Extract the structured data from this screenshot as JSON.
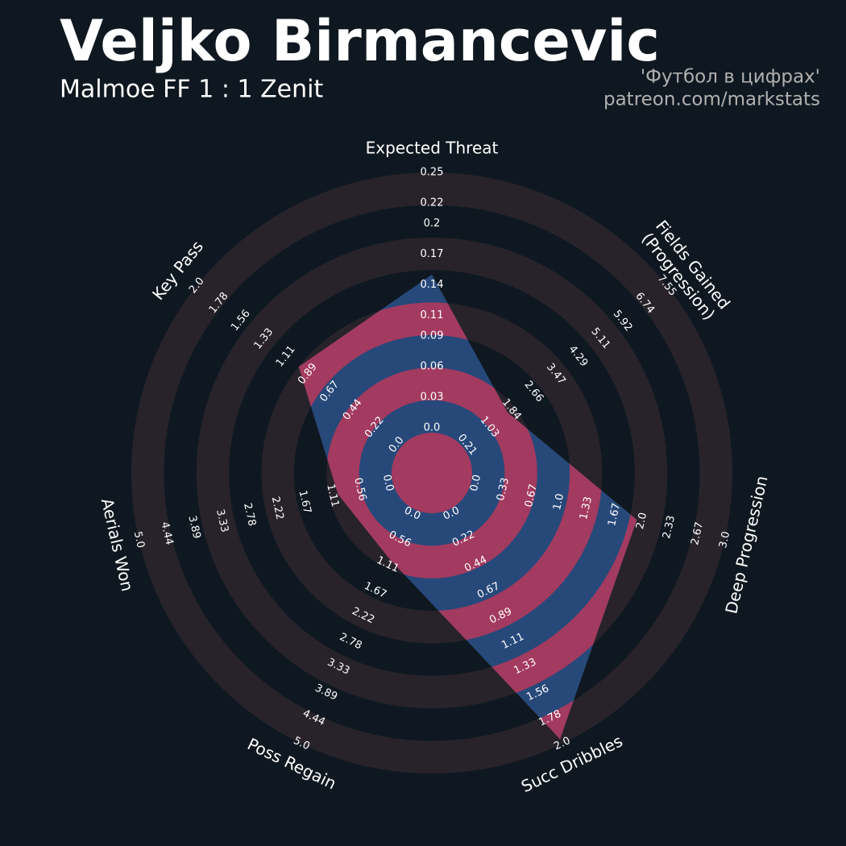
{
  "chart_data": {
    "type": "radar",
    "title": "Veljko Birmancevic",
    "subtitle": "Malmoe FF 1 : 1 Zenit",
    "credits": [
      "'Футбол в цифрах'",
      "patreon.com/markstats"
    ],
    "categories": [
      "Expected Threat",
      "Fields Gained\n(Progression)",
      "Deep Progression",
      "Succ Dribbles",
      "Poss Regain",
      "Aerials Won",
      "Key Pass"
    ],
    "values": [
      0.15,
      1.7,
      1.94,
      1.96,
      1.0,
      1.0,
      0.98
    ],
    "axes": [
      {
        "ylim": [
          0,
          0.25
        ],
        "yticks": [
          {
            "value": 0,
            "label": "0.0"
          },
          0.03,
          0.06,
          0.09,
          0.11,
          0.14,
          0.17,
          0.2,
          0.22,
          0.25
        ]
      },
      {
        "ylim": [
          0.21,
          7.55
        ],
        "yticks": [
          0.21,
          1.03,
          1.84,
          2.66,
          3.47,
          4.29,
          5.11,
          5.92,
          6.74,
          7.55
        ]
      },
      {
        "ylim": [
          0,
          3
        ],
        "yticks": [
          {
            "value": 0,
            "label": "0.0"
          },
          0.33,
          0.67,
          {
            "value": 1,
            "label": "1.0"
          },
          1.33,
          1.67,
          {
            "value": 2,
            "label": "2.0"
          },
          2.33,
          2.67,
          {
            "value": 3,
            "label": "3.0"
          }
        ]
      },
      {
        "ylim": [
          0,
          2
        ],
        "yticks": [
          {
            "value": 0,
            "label": "0.0"
          },
          0.22,
          0.44,
          0.67,
          0.89,
          1.11,
          1.33,
          1.56,
          1.78,
          {
            "value": 2,
            "label": "2.0"
          }
        ]
      },
      {
        "ylim": [
          0,
          5
        ],
        "yticks": [
          {
            "value": 0,
            "label": "0.0"
          },
          0.56,
          1.11,
          1.67,
          2.22,
          2.78,
          3.33,
          3.89,
          4.44,
          {
            "value": 5,
            "label": "5.0"
          }
        ]
      },
      {
        "ylim": [
          0,
          5
        ],
        "yticks": [
          {
            "value": 0,
            "label": "0.0"
          },
          0.56,
          1.11,
          1.67,
          2.22,
          2.78,
          3.33,
          3.89,
          4.44,
          {
            "value": 5,
            "label": "5.0"
          }
        ]
      },
      {
        "ylim": [
          0,
          2
        ],
        "yticks": [
          {
            "value": 0,
            "label": "0.0"
          },
          0.22,
          0.44,
          0.67,
          0.89,
          1.11,
          1.33,
          1.56,
          1.78,
          {
            "value": 2,
            "label": "2.0"
          }
        ]
      }
    ],
    "color": "#27497a",
    "ring_color": "#a33a5f",
    "band_color": "#28232a"
  }
}
